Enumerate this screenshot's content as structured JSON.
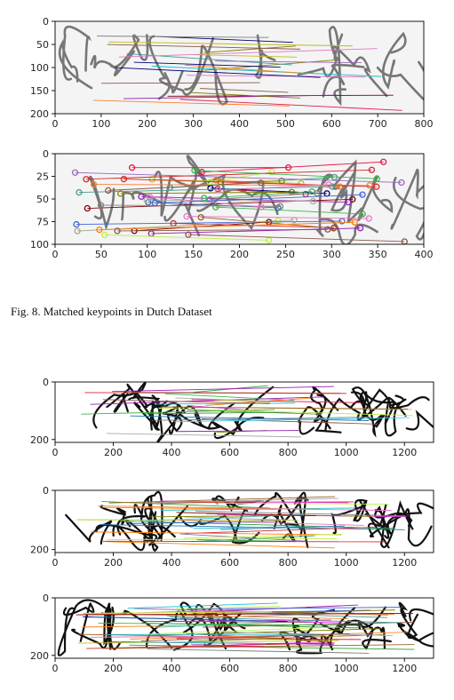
{
  "caption": "Fig. 8.  Matched keypoints in Dutch Dataset",
  "panels": [
    {
      "x_ticks": [
        "0",
        "100",
        "200",
        "300",
        "400",
        "500",
        "600",
        "700",
        "800"
      ],
      "y_ticks": [
        "0",
        "50",
        "100",
        "150",
        "200"
      ],
      "word_image": "cursive signature pair (Dutch)"
    },
    {
      "x_ticks": [
        "0",
        "50",
        "100",
        "150",
        "200",
        "250",
        "300",
        "350",
        "400"
      ],
      "y_ticks": [
        "0",
        "25",
        "50",
        "75",
        "100"
      ],
      "word_image": "cursive signature pair (Dutch), downscaled"
    },
    {
      "x_ticks": [
        "0",
        "200",
        "400",
        "600",
        "800",
        "1000",
        "1200"
      ],
      "y_ticks": [
        "0",
        "200"
      ],
      "word_image": "Chinese signature pair"
    },
    {
      "x_ticks": [
        "0",
        "200",
        "400",
        "600",
        "800",
        "1000",
        "1200"
      ],
      "y_ticks": [
        "0",
        "200"
      ],
      "word_image": "Chinese signature pair"
    },
    {
      "x_ticks": [
        "0",
        "200",
        "400",
        "600",
        "800",
        "1000",
        "1200"
      ],
      "y_ticks": [
        "0",
        "200"
      ],
      "word_image": "Chinese signature pair"
    }
  ],
  "match_colors": [
    "#e6194b",
    "#3cb44b",
    "#4363d8",
    "#f58231",
    "#911eb4",
    "#42d4f4",
    "#f032e6",
    "#bfef45",
    "#469990",
    "#9a6324",
    "#800000",
    "#808000",
    "#000075",
    "#a9a9a9",
    "#ff7f0e",
    "#2ca02c",
    "#1f77b4",
    "#d62728",
    "#9467bd",
    "#8c564b",
    "#17becf",
    "#bcbd22",
    "#e377c2",
    "#7f7f7f"
  ]
}
